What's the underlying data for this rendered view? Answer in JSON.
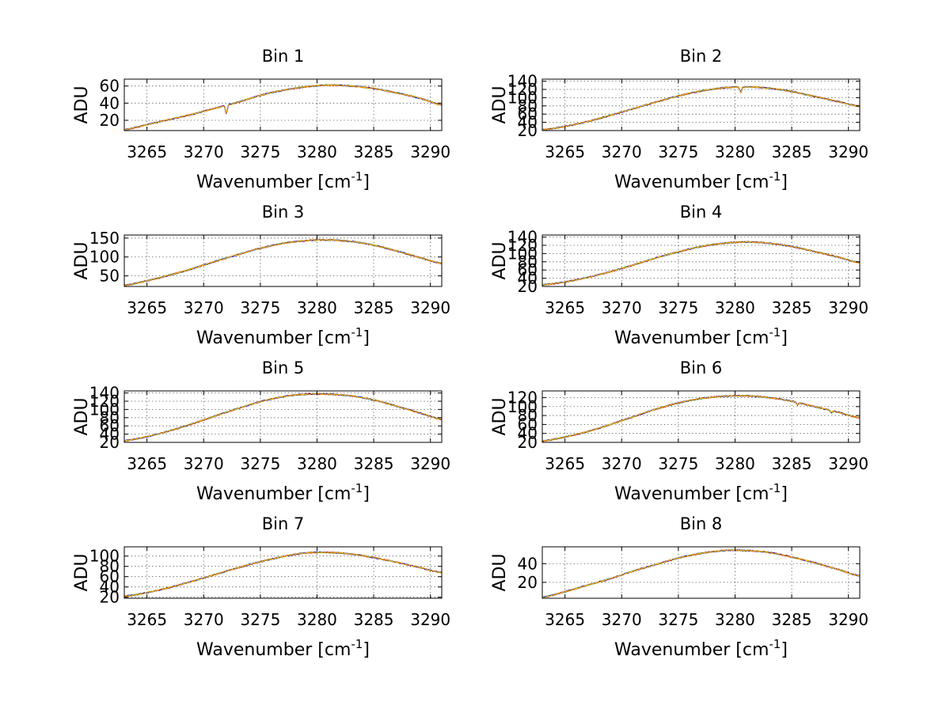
{
  "figure": {
    "background": "#ffffff"
  },
  "chart_data": [
    {
      "type": "line",
      "title": "Bin 1",
      "xlabel": "Wavenumber [cm",
      "xlabel_sup": "-1",
      "xlabel_end": "]",
      "ylabel": "ADU",
      "xlim": [
        3263,
        3291
      ],
      "ylim": [
        8,
        68
      ],
      "xticks": [
        3265,
        3270,
        3275,
        3280,
        3285,
        3290
      ],
      "xtick_labels": [
        "3265",
        "3270",
        "3275",
        "3280",
        "3285",
        "3290"
      ],
      "yticks": [
        20,
        40,
        60
      ],
      "ytick_labels": [
        "20",
        "40",
        "60"
      ],
      "grid": true,
      "curve": {
        "x": [
          3263,
          3265,
          3267,
          3269,
          3271,
          3273,
          3275,
          3277,
          3279,
          3281,
          3283,
          3285,
          3287,
          3289,
          3291
        ],
        "y": [
          9,
          15,
          21,
          27,
          34,
          41,
          49,
          55,
          59,
          61,
          60,
          57,
          52,
          46,
          38
        ]
      },
      "dips": [
        {
          "x": 3272,
          "depth": 10
        }
      ],
      "series_colors": [
        "#000000",
        "#00bf00",
        "#00bfbf",
        "#ff0000",
        "#0000ff",
        "#ffb800"
      ]
    },
    {
      "type": "line",
      "title": "Bin 2",
      "xlabel": "Wavenumber [cm",
      "xlabel_sup": "-1",
      "xlabel_end": "]",
      "ylabel": "ADU",
      "xlim": [
        3263,
        3291
      ],
      "ylim": [
        20,
        145
      ],
      "xticks": [
        3265,
        3270,
        3275,
        3280,
        3285,
        3290
      ],
      "xtick_labels": [
        "3265",
        "3270",
        "3275",
        "3280",
        "3285",
        "3290"
      ],
      "yticks": [
        20,
        40,
        60,
        80,
        100,
        120,
        140
      ],
      "ytick_labels": [
        "20",
        "40",
        "60",
        "80",
        "100",
        "120",
        "140"
      ],
      "grid": true,
      "curve": {
        "x": [
          3263,
          3265,
          3267,
          3269,
          3271,
          3273,
          3275,
          3277,
          3279,
          3281,
          3283,
          3285,
          3287,
          3289,
          3291
        ],
        "y": [
          22,
          30,
          42,
          57,
          73,
          89,
          104,
          116,
          124,
          126,
          123,
          115,
          103,
          91,
          79
        ]
      },
      "dips": [
        {
          "x": 3280.5,
          "depth": 15
        }
      ],
      "series_colors": [
        "#000000",
        "#00bf00",
        "#00bfbf",
        "#ff0000",
        "#0000ff",
        "#ffb800"
      ]
    },
    {
      "type": "line",
      "title": "Bin 3",
      "xlabel": "Wavenumber [cm",
      "xlabel_sup": "-1",
      "xlabel_end": "]",
      "ylabel": "ADU",
      "xlim": [
        3263,
        3291
      ],
      "ylim": [
        22,
        158
      ],
      "xticks": [
        3265,
        3270,
        3275,
        3280,
        3285,
        3290
      ],
      "xtick_labels": [
        "3265",
        "3270",
        "3275",
        "3280",
        "3285",
        "3290"
      ],
      "yticks": [
        50,
        100,
        150
      ],
      "ytick_labels": [
        "50",
        "100",
        "150"
      ],
      "grid": true,
      "curve": {
        "x": [
          3263,
          3265,
          3267,
          3269,
          3271,
          3273,
          3275,
          3277,
          3279,
          3281,
          3283,
          3285,
          3287,
          3289,
          3291
        ],
        "y": [
          25,
          37,
          52,
          69,
          88,
          106,
          123,
          136,
          143,
          145,
          141,
          131,
          116,
          99,
          83
        ]
      },
      "dips": [],
      "series_colors": [
        "#000000",
        "#00bf00",
        "#00bfbf",
        "#ff0000",
        "#0000ff",
        "#ffb800"
      ]
    },
    {
      "type": "line",
      "title": "Bin 4",
      "xlabel": "Wavenumber [cm",
      "xlabel_sup": "-1",
      "xlabel_end": "]",
      "ylabel": "ADU",
      "xlim": [
        3263,
        3291
      ],
      "ylim": [
        20,
        145
      ],
      "xticks": [
        3265,
        3270,
        3275,
        3280,
        3285,
        3290
      ],
      "xtick_labels": [
        "3265",
        "3270",
        "3275",
        "3280",
        "3285",
        "3290"
      ],
      "yticks": [
        20,
        40,
        60,
        80,
        100,
        120,
        140
      ],
      "ytick_labels": [
        "20",
        "40",
        "60",
        "80",
        "100",
        "120",
        "140"
      ],
      "grid": true,
      "curve": {
        "x": [
          3263,
          3265,
          3267,
          3269,
          3271,
          3273,
          3275,
          3277,
          3279,
          3281,
          3283,
          3285,
          3287,
          3289,
          3291
        ],
        "y": [
          24,
          31,
          42,
          56,
          72,
          89,
          104,
          117,
          125,
          128,
          125,
          117,
          105,
          92,
          78
        ]
      },
      "dips": [],
      "series_colors": [
        "#000000",
        "#00bf00",
        "#00bfbf",
        "#ff0000",
        "#0000ff",
        "#ffb800"
      ]
    },
    {
      "type": "line",
      "title": "Bin 5",
      "xlabel": "Wavenumber [cm",
      "xlabel_sup": "-1",
      "xlabel_end": "]",
      "ylabel": "ADU",
      "xlim": [
        3263,
        3291
      ],
      "ylim": [
        20,
        145
      ],
      "xticks": [
        3265,
        3270,
        3275,
        3280,
        3285,
        3290
      ],
      "xtick_labels": [
        "3265",
        "3270",
        "3275",
        "3280",
        "3285",
        "3290"
      ],
      "yticks": [
        20,
        40,
        60,
        80,
        100,
        120,
        140
      ],
      "ytick_labels": [
        "20",
        "40",
        "60",
        "80",
        "100",
        "120",
        "140"
      ],
      "grid": true,
      "curve": {
        "x": [
          3263,
          3265,
          3267,
          3269,
          3271,
          3273,
          3275,
          3277,
          3279,
          3281,
          3283,
          3285,
          3287,
          3289,
          3291
        ],
        "y": [
          24,
          34,
          48,
          65,
          84,
          102,
          119,
          131,
          137,
          137,
          133,
          123,
          108,
          92,
          76
        ]
      },
      "dips": [],
      "series_colors": [
        "#000000",
        "#00bf00",
        "#00bfbf",
        "#ff0000",
        "#0000ff",
        "#ffb800"
      ]
    },
    {
      "type": "line",
      "title": "Bin 6",
      "xlabel": "Wavenumber [cm",
      "xlabel_sup": "-1",
      "xlabel_end": "]",
      "ylabel": "ADU",
      "xlim": [
        3263,
        3291
      ],
      "ylim": [
        20,
        135
      ],
      "xticks": [
        3265,
        3270,
        3275,
        3280,
        3285,
        3290
      ],
      "xtick_labels": [
        "3265",
        "3270",
        "3275",
        "3280",
        "3285",
        "3290"
      ],
      "yticks": [
        20,
        40,
        60,
        80,
        100,
        120
      ],
      "ytick_labels": [
        "20",
        "40",
        "60",
        "80",
        "100",
        "120"
      ],
      "grid": true,
      "curve": {
        "x": [
          3263,
          3265,
          3267,
          3269,
          3271,
          3273,
          3275,
          3277,
          3279,
          3281,
          3283,
          3285,
          3287,
          3289,
          3291
        ],
        "y": [
          23,
          32,
          44,
          60,
          77,
          94,
          108,
          118,
          123,
          124,
          120,
          112,
          100,
          88,
          75
        ]
      },
      "dips": [
        {
          "x": 3285.5,
          "depth": 6
        },
        {
          "x": 3288.5,
          "depth": 5
        }
      ],
      "series_colors": [
        "#000000",
        "#00bf00",
        "#00bfbf",
        "#ff0000",
        "#0000ff",
        "#ffb800"
      ]
    },
    {
      "type": "line",
      "title": "Bin 7",
      "xlabel": "Wavenumber [cm",
      "xlabel_sup": "-1",
      "xlabel_end": "]",
      "ylabel": "ADU",
      "xlim": [
        3263,
        3291
      ],
      "ylim": [
        18,
        118
      ],
      "xticks": [
        3265,
        3270,
        3275,
        3280,
        3285,
        3290
      ],
      "xtick_labels": [
        "3265",
        "3270",
        "3275",
        "3280",
        "3285",
        "3290"
      ],
      "yticks": [
        20,
        40,
        60,
        80,
        100
      ],
      "ytick_labels": [
        "20",
        "40",
        "60",
        "80",
        "100"
      ],
      "grid": true,
      "curve": {
        "x": [
          3263,
          3265,
          3267,
          3269,
          3271,
          3273,
          3275,
          3277,
          3279,
          3281,
          3283,
          3285,
          3287,
          3289,
          3291
        ],
        "y": [
          22,
          29,
          39,
          51,
          64,
          77,
          89,
          99,
          106,
          107,
          104,
          97,
          88,
          78,
          68
        ]
      },
      "dips": [],
      "series_colors": [
        "#000000",
        "#00bf00",
        "#00bfbf",
        "#ff0000",
        "#0000ff",
        "#ffb800"
      ]
    },
    {
      "type": "line",
      "title": "Bin 8",
      "xlabel": "Wavenumber [cm",
      "xlabel_sup": "-1",
      "xlabel_end": "]",
      "ylabel": "ADU",
      "xlim": [
        3263,
        3291
      ],
      "ylim": [
        3,
        58
      ],
      "xticks": [
        3265,
        3270,
        3275,
        3280,
        3285,
        3290
      ],
      "xtick_labels": [
        "3265",
        "3270",
        "3275",
        "3280",
        "3285",
        "3290"
      ],
      "yticks": [
        20,
        40
      ],
      "ytick_labels": [
        "20",
        "40"
      ],
      "grid": true,
      "curve": {
        "x": [
          3263,
          3265,
          3267,
          3269,
          3271,
          3273,
          3275,
          3277,
          3279,
          3281,
          3283,
          3285,
          3287,
          3289,
          3291
        ],
        "y": [
          4,
          10,
          17,
          24,
          32,
          39,
          46,
          51,
          54,
          54,
          52,
          47,
          41,
          34,
          27
        ]
      },
      "dips": [],
      "series_colors": [
        "#000000",
        "#00bf00",
        "#00bfbf",
        "#ff0000",
        "#0000ff",
        "#ffb800"
      ]
    }
  ]
}
